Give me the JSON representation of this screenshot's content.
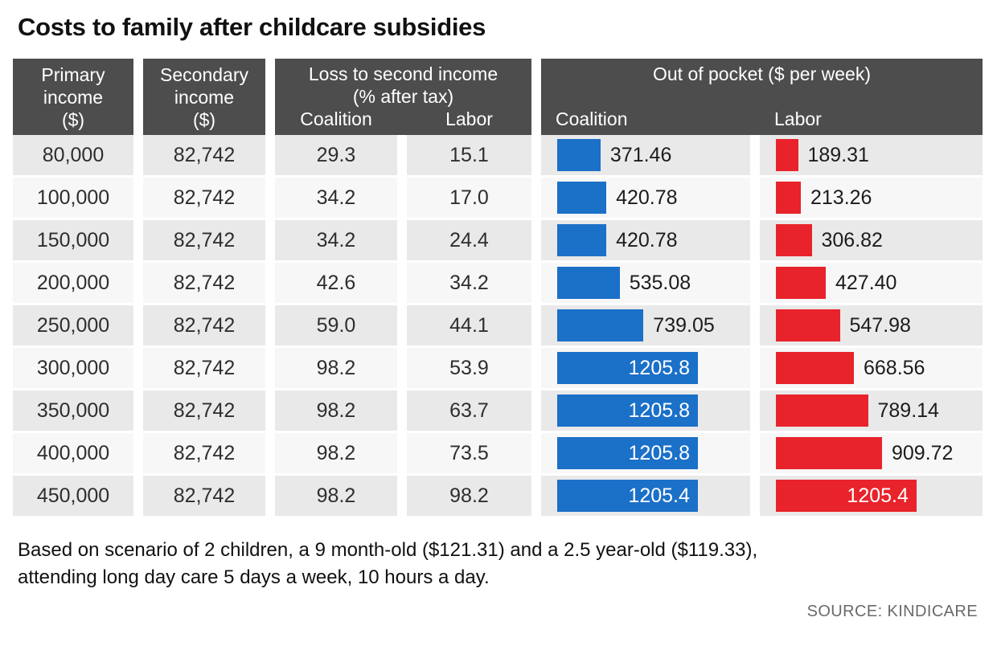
{
  "title": "Costs to family after childcare subsidies",
  "colors": {
    "coalition_blue": "#1b70c8",
    "labor_red": "#e8232b",
    "header_bg": "#4d4d4d",
    "row_odd": "#e9e9e9",
    "row_even": "#f7f7f7"
  },
  "header": {
    "primary": [
      "Primary",
      "income",
      "($)"
    ],
    "secondary": [
      "Secondary",
      "income",
      "($)"
    ],
    "loss_title": [
      "Loss to second income",
      "(% after tax)"
    ],
    "loss_sub": [
      "Coalition",
      "Labor"
    ],
    "pocket_title": "Out of pocket ($ per week)",
    "pocket_sub": [
      "Coalition",
      "Labor"
    ]
  },
  "table": {
    "rows": [
      [
        "80,000",
        "82,742",
        "29.3",
        "15.1",
        "371.46",
        "189.31"
      ],
      [
        "100,000",
        "82,742",
        "34.2",
        "17.0",
        "420.78",
        "213.26"
      ],
      [
        "150,000",
        "82,742",
        "34.2",
        "24.4",
        "420.78",
        "306.82"
      ],
      [
        "200,000",
        "82,742",
        "42.6",
        "34.2",
        "535.08",
        "427.40"
      ],
      [
        "250,000",
        "82,742",
        "59.0",
        "44.1",
        "739.05",
        "547.98"
      ],
      [
        "300,000",
        "82,742",
        "98.2",
        "53.9",
        "1205.8",
        "668.56"
      ],
      [
        "350,000",
        "82,742",
        "98.2",
        "63.7",
        "1205.8",
        "789.14"
      ],
      [
        "400,000",
        "82,742",
        "98.2",
        "73.5",
        "1205.8",
        "909.72"
      ],
      [
        "450,000",
        "82,742",
        "98.2",
        "98.2",
        "1205.4",
        "1205.4"
      ]
    ]
  },
  "chart_data": {
    "type": "bar",
    "title": "Costs to family after childcare subsidies",
    "categories": [
      "80,000",
      "100,000",
      "150,000",
      "200,000",
      "250,000",
      "300,000",
      "350,000",
      "400,000",
      "450,000"
    ],
    "xlabel": "Primary income ($)",
    "secondary_income_all_rows": "82,742",
    "series": [
      {
        "name": "Loss to second income (% after tax) — Coalition",
        "values": [
          29.3,
          34.2,
          34.2,
          42.6,
          59.0,
          98.2,
          98.2,
          98.2,
          98.2
        ]
      },
      {
        "name": "Loss to second income (% after tax) — Labor",
        "values": [
          15.1,
          17.0,
          24.4,
          34.2,
          44.1,
          53.9,
          63.7,
          73.5,
          98.2
        ]
      },
      {
        "name": "Out of pocket ($ per week) — Coalition",
        "values": [
          371.46,
          420.78,
          420.78,
          535.08,
          739.05,
          1205.8,
          1205.8,
          1205.8,
          1205.4
        ]
      },
      {
        "name": "Out of pocket ($ per week) — Labor",
        "values": [
          189.31,
          213.26,
          306.82,
          427.4,
          547.98,
          668.56,
          789.14,
          909.72,
          1205.4
        ]
      }
    ],
    "bar_scale_max": 1205.8,
    "legend_position": "none",
    "grid": false
  },
  "footnote": [
    "Based on scenario of 2 children, a 9 month-old ($121.31) and a 2.5 year-old ($119.33),",
    "attending long day care 5 days a week, 10 hours a day."
  ],
  "source": "SOURCE: KINDICARE"
}
